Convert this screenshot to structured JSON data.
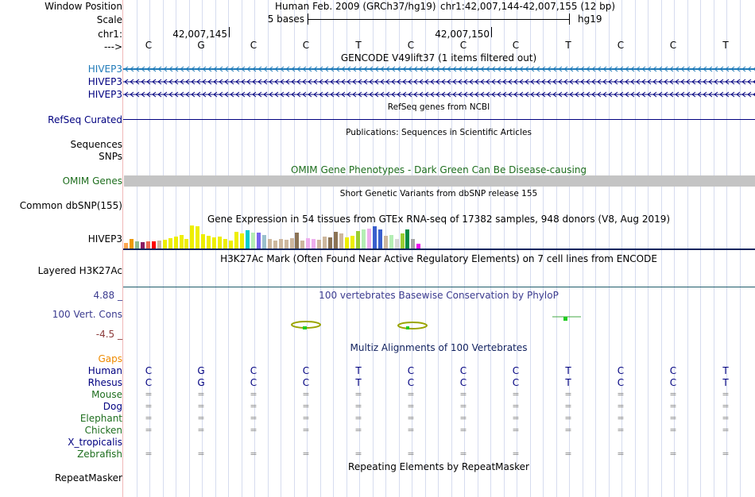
{
  "header": {
    "window_position_label": "Window Position",
    "scale_label": "Scale",
    "chr_label": "chr1:",
    "arrow_label": "--->",
    "assembly": "Human Feb. 2009 (GRCh37/hg19)",
    "position": "chr1:42,007,144-42,007,155 (12 bp)",
    "scale_text": "5 bases",
    "db": "hg19",
    "coord1": "42,007,145",
    "coord2": "42,007,150",
    "bases": [
      "C",
      "G",
      "C",
      "C",
      "T",
      "C",
      "C",
      "C",
      "T",
      "C",
      "C",
      "T"
    ]
  },
  "tracks": {
    "gencode": {
      "title": "GENCODE V49lift37 (1 items filtered out)",
      "genes": [
        "HIVEP3",
        "HIVEP3",
        "HIVEP3"
      ]
    },
    "refseq": {
      "title": "RefSeq genes from NCBI",
      "label": "RefSeq Curated"
    },
    "pubs": {
      "title": "Publications: Sequences in Scientific Articles",
      "label1": "Sequences",
      "label2": "SNPs"
    },
    "omim": {
      "title": "OMIM Gene Phenotypes - Dark Green Can Be Disease-causing",
      "label": "OMIM Genes"
    },
    "dbsnp": {
      "title": "Short Genetic Variants from dbSNP release 155",
      "label": "Common dbSNP(155)"
    },
    "gtex": {
      "title": "Gene Expression in 54 tissues from GTEx RNA-seq of 17382 samples, 948 donors (V8, Aug 2019)",
      "label": "HIVEP3",
      "bars": [
        {
          "h": 0.25,
          "c": "#ffa54f"
        },
        {
          "h": 0.4,
          "c": "#ee9a00"
        },
        {
          "h": 0.3,
          "c": "#8fbc8f"
        },
        {
          "h": 0.28,
          "c": "#8b1c62"
        },
        {
          "h": 0.32,
          "c": "#ee6a50"
        },
        {
          "h": 0.3,
          "c": "#ff0000"
        },
        {
          "h": 0.35,
          "c": "#cdb79e"
        },
        {
          "h": 0.38,
          "c": "#eeee00"
        },
        {
          "h": 0.45,
          "c": "#eeee00"
        },
        {
          "h": 0.5,
          "c": "#eeee00"
        },
        {
          "h": 0.58,
          "c": "#eeee00"
        },
        {
          "h": 0.42,
          "c": "#eeee00"
        },
        {
          "h": 1.0,
          "c": "#eeee00"
        },
        {
          "h": 0.95,
          "c": "#eeee00"
        },
        {
          "h": 0.62,
          "c": "#eeee00"
        },
        {
          "h": 0.55,
          "c": "#eeee00"
        },
        {
          "h": 0.48,
          "c": "#eeee00"
        },
        {
          "h": 0.5,
          "c": "#eeee00"
        },
        {
          "h": 0.4,
          "c": "#eeee00"
        },
        {
          "h": 0.35,
          "c": "#eeee00"
        },
        {
          "h": 0.72,
          "c": "#eeee00"
        },
        {
          "h": 0.66,
          "c": "#eeee00"
        },
        {
          "h": 0.78,
          "c": "#00cdcd"
        },
        {
          "h": 0.7,
          "c": "#b4eeb4"
        },
        {
          "h": 0.68,
          "c": "#7a67ee"
        },
        {
          "h": 0.58,
          "c": "#9ac0cd"
        },
        {
          "h": 0.4,
          "c": "#cdb79e"
        },
        {
          "h": 0.35,
          "c": "#cdb79e"
        },
        {
          "h": 0.4,
          "c": "#cdb79e"
        },
        {
          "h": 0.38,
          "c": "#cdb79e"
        },
        {
          "h": 0.45,
          "c": "#cdb79e"
        },
        {
          "h": 0.68,
          "c": "#8b7355"
        },
        {
          "h": 0.36,
          "c": "#cdb79e"
        },
        {
          "h": 0.46,
          "c": "#eeaeee"
        },
        {
          "h": 0.42,
          "c": "#eeaeee"
        },
        {
          "h": 0.38,
          "c": "#cdb79e"
        },
        {
          "h": 0.52,
          "c": "#cdb79e"
        },
        {
          "h": 0.48,
          "c": "#8b7355"
        },
        {
          "h": 0.72,
          "c": "#8b7355"
        },
        {
          "h": 0.66,
          "c": "#cdb79e"
        },
        {
          "h": 0.48,
          "c": "#eeee00"
        },
        {
          "h": 0.54,
          "c": "#eeee00"
        },
        {
          "h": 0.75,
          "c": "#9acd32"
        },
        {
          "h": 0.82,
          "c": "#b4eeb4"
        },
        {
          "h": 0.86,
          "c": "#eeaeee"
        },
        {
          "h": 0.96,
          "c": "#3a5fcd"
        },
        {
          "h": 0.82,
          "c": "#3a5fcd"
        },
        {
          "h": 0.55,
          "c": "#cdb79e"
        },
        {
          "h": 0.6,
          "c": "#b4eeb4"
        },
        {
          "h": 0.4,
          "c": "#d9d9d9"
        },
        {
          "h": 0.65,
          "c": "#9acd32"
        },
        {
          "h": 0.82,
          "c": "#008b45"
        },
        {
          "h": 0.42,
          "c": "#a6a6a6"
        },
        {
          "h": 0.22,
          "c": "#ee00ee"
        }
      ]
    },
    "h3k27ac": {
      "title": "H3K27Ac Mark (Often Found Near Active Regulatory Elements) on 7 cell lines from ENCODE",
      "label": "Layered H3K27Ac"
    },
    "phylop": {
      "title": "100 vertebrates Basewise Conservation by PhyloP",
      "label": "100 Vert. Cons",
      "max_label": "4.88 _",
      "min_label": "-4.5 _"
    },
    "multiz": {
      "title": "Multiz Alignments of 100 Vertebrates",
      "gaps_label": "Gaps",
      "species": [
        {
          "name": "Human",
          "color": "#000080",
          "type": "bases",
          "bases": [
            "C",
            "G",
            "C",
            "C",
            "T",
            "C",
            "C",
            "C",
            "T",
            "C",
            "C",
            "T"
          ]
        },
        {
          "name": "Rhesus",
          "color": "#000080",
          "type": "bases",
          "bases": [
            "C",
            "G",
            "C",
            "C",
            "T",
            "C",
            "C",
            "C",
            "T",
            "C",
            "C",
            "T"
          ]
        },
        {
          "name": "Mouse",
          "color": "#1e6e1e",
          "type": "eq"
        },
        {
          "name": "Dog",
          "color": "#000080",
          "type": "eq"
        },
        {
          "name": "Elephant",
          "color": "#1e6e1e",
          "type": "eq"
        },
        {
          "name": "Chicken",
          "color": "#1e6e1e",
          "type": "eq"
        },
        {
          "name": "X_tropicalis",
          "color": "#000080",
          "type": "none"
        },
        {
          "name": "Zebrafish",
          "color": "#1e6e1e",
          "type": "eq"
        }
      ]
    },
    "repeatmasker": {
      "title": "Repeating Elements by RepeatMasker",
      "label": "RepeatMasker"
    }
  }
}
